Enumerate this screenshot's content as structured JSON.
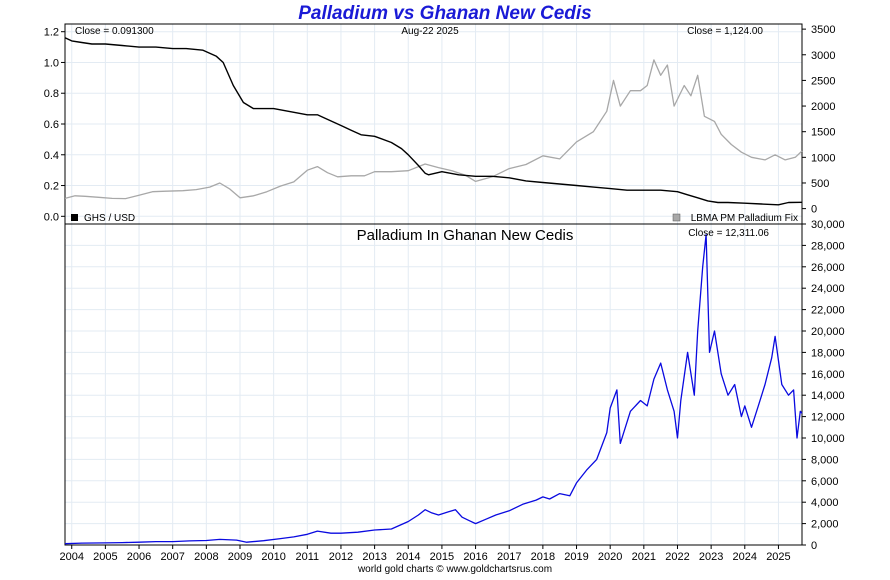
{
  "title": "Palladium vs Ghanan New Cedis",
  "footer": "world gold charts © www.goldchartsrus.com",
  "colors": {
    "title": "#1a1ad6",
    "ghs_series": "#000000",
    "palladium_series": "#a8a8a8",
    "ghs_price_series": "#0a0ae0",
    "grid": "#e3ebf3"
  },
  "top_panel": {
    "date_label": "Aug-22  2025",
    "left_close": "Close = 0.091300",
    "right_close": "Close = 1,124.00",
    "legend_left": "GHS / USD",
    "legend_right": "LBMA PM Palladium Fix"
  },
  "bottom_panel": {
    "title": "Palladium In Ghanan New Cedis",
    "close": "Close = 12,311.06"
  },
  "chart_data": [
    {
      "type": "line",
      "panel": "top",
      "grid": true,
      "x_range": [
        2003.8,
        2025.7
      ],
      "x_ticks": [
        "2004",
        "2005",
        "2006",
        "2007",
        "2008",
        "2009",
        "2010",
        "2011",
        "2012",
        "2013",
        "2014",
        "2015",
        "2016",
        "2017",
        "2018",
        "2019",
        "2020",
        "2021",
        "2022",
        "2023",
        "2024",
        "2025"
      ],
      "left_axis": {
        "range": [
          -0.05,
          1.25
        ],
        "ticks": [
          "0.0",
          "0.2",
          "0.4",
          "0.6",
          "0.8",
          "1.0",
          "1.2"
        ]
      },
      "right_axis": {
        "range": [
          -300,
          3600
        ],
        "ticks": [
          "0",
          "500",
          "1000",
          "1500",
          "2000",
          "2500",
          "3000",
          "3500"
        ]
      },
      "series": [
        {
          "name": "GHS / USD",
          "axis": "left",
          "x": [
            2003.8,
            2004.0,
            2004.3,
            2004.6,
            2005.0,
            2005.5,
            2006.0,
            2006.5,
            2007.0,
            2007.4,
            2007.9,
            2008.3,
            2008.5,
            2008.8,
            2009.1,
            2009.4,
            2009.7,
            2010.0,
            2010.5,
            2011.0,
            2011.3,
            2011.6,
            2012.0,
            2012.3,
            2012.6,
            2013.0,
            2013.5,
            2013.8,
            2014.0,
            2014.3,
            2014.5,
            2014.6,
            2015.0,
            2015.5,
            2016.0,
            2016.5,
            2017.0,
            2017.5,
            2018.0,
            2018.5,
            2019.0,
            2019.5,
            2020.0,
            2020.5,
            2021.0,
            2021.5,
            2022.0,
            2022.3,
            2022.6,
            2022.9,
            2023.2,
            2023.5,
            2024.0,
            2024.5,
            2025.0,
            2025.3,
            2025.7
          ],
          "y": [
            1.16,
            1.14,
            1.13,
            1.12,
            1.12,
            1.11,
            1.1,
            1.1,
            1.09,
            1.09,
            1.08,
            1.04,
            1.0,
            0.85,
            0.74,
            0.7,
            0.7,
            0.7,
            0.68,
            0.66,
            0.66,
            0.63,
            0.59,
            0.56,
            0.53,
            0.52,
            0.48,
            0.44,
            0.4,
            0.33,
            0.28,
            0.27,
            0.29,
            0.27,
            0.26,
            0.26,
            0.25,
            0.23,
            0.22,
            0.21,
            0.2,
            0.19,
            0.18,
            0.17,
            0.17,
            0.17,
            0.16,
            0.14,
            0.12,
            0.1,
            0.09,
            0.09,
            0.085,
            0.08,
            0.075,
            0.09,
            0.0913
          ]
        },
        {
          "name": "LBMA PM Palladium Fix",
          "axis": "right",
          "x": [
            2003.8,
            2004.1,
            2004.4,
            2004.8,
            2005.2,
            2005.6,
            2006.0,
            2006.4,
            2006.8,
            2007.3,
            2007.7,
            2008.1,
            2008.4,
            2008.7,
            2009.0,
            2009.4,
            2009.8,
            2010.2,
            2010.6,
            2011.0,
            2011.3,
            2011.6,
            2011.9,
            2012.3,
            2012.7,
            2013.0,
            2013.5,
            2014.0,
            2014.5,
            2014.9,
            2015.3,
            2015.7,
            2016.0,
            2016.5,
            2017.0,
            2017.5,
            2018.0,
            2018.5,
            2019.0,
            2019.5,
            2019.9,
            2020.1,
            2020.3,
            2020.6,
            2020.9,
            2021.1,
            2021.3,
            2021.5,
            2021.7,
            2021.9,
            2022.2,
            2022.4,
            2022.6,
            2022.8,
            2023.1,
            2023.3,
            2023.6,
            2023.9,
            2024.2,
            2024.6,
            2024.9,
            2025.2,
            2025.5,
            2025.7
          ],
          "y": [
            200,
            250,
            240,
            220,
            200,
            195,
            260,
            330,
            340,
            350,
            370,
            420,
            500,
            380,
            210,
            250,
            330,
            440,
            520,
            750,
            820,
            700,
            620,
            640,
            640,
            720,
            720,
            740,
            870,
            800,
            740,
            650,
            530,
            620,
            780,
            860,
            1030,
            970,
            1300,
            1500,
            1900,
            2500,
            2000,
            2300,
            2300,
            2400,
            2900,
            2600,
            2800,
            2000,
            2400,
            2200,
            2600,
            1800,
            1700,
            1450,
            1250,
            1100,
            1000,
            950,
            1050,
            950,
            1000,
            1124
          ]
        }
      ]
    },
    {
      "type": "line",
      "panel": "bottom",
      "title": "Palladium In Ghanan New Cedis",
      "grid": true,
      "x_range": [
        2003.8,
        2025.7
      ],
      "x_ticks": [
        "2004",
        "2005",
        "2006",
        "2007",
        "2008",
        "2009",
        "2010",
        "2011",
        "2012",
        "2013",
        "2014",
        "2015",
        "2016",
        "2017",
        "2018",
        "2019",
        "2020",
        "2021",
        "2022",
        "2023",
        "2024",
        "2025"
      ],
      "y_axis": {
        "range": [
          0,
          30000
        ],
        "ticks": [
          "0",
          "2,000",
          "4,000",
          "6,000",
          "8,000",
          "10,000",
          "12,000",
          "14,000",
          "16,000",
          "18,000",
          "20,000",
          "22,000",
          "24,000",
          "26,000",
          "28,000",
          "30,000"
        ]
      },
      "series": [
        {
          "name": "Palladium In Ghanan New Cedis",
          "x": [
            2003.8,
            2004.3,
            2005.0,
            2005.5,
            2006.0,
            2006.5,
            2007.0,
            2007.5,
            2008.0,
            2008.4,
            2008.9,
            2009.2,
            2009.7,
            2010.2,
            2010.6,
            2011.0,
            2011.3,
            2011.7,
            2012.0,
            2012.5,
            2013.0,
            2013.5,
            2014.0,
            2014.3,
            2014.5,
            2014.7,
            2014.9,
            2015.2,
            2015.4,
            2015.6,
            2015.8,
            2016.0,
            2016.3,
            2016.6,
            2017.0,
            2017.4,
            2017.8,
            2018.0,
            2018.2,
            2018.5,
            2018.8,
            2019.0,
            2019.3,
            2019.6,
            2019.9,
            2020.0,
            2020.2,
            2020.3,
            2020.6,
            2020.9,
            2021.1,
            2021.3,
            2021.5,
            2021.7,
            2021.9,
            2022.0,
            2022.1,
            2022.3,
            2022.5,
            2022.6,
            2022.75,
            2022.85,
            2022.95,
            2023.1,
            2023.3,
            2023.5,
            2023.7,
            2023.9,
            2024.0,
            2024.2,
            2024.4,
            2024.6,
            2024.8,
            2024.9,
            2025.1,
            2025.3,
            2025.45,
            2025.55,
            2025.65,
            2025.7
          ],
          "y": [
            120,
            180,
            200,
            220,
            260,
            320,
            320,
            380,
            420,
            520,
            460,
            260,
            400,
            600,
            760,
            1000,
            1300,
            1100,
            1100,
            1200,
            1400,
            1500,
            2200,
            2800,
            3300,
            3000,
            2800,
            3100,
            3300,
            2600,
            2300,
            2000,
            2400,
            2800,
            3200,
            3800,
            4200,
            4500,
            4300,
            4800,
            4600,
            5800,
            7000,
            8000,
            10500,
            12800,
            14500,
            9500,
            12500,
            13500,
            13000,
            15500,
            17000,
            14500,
            12500,
            10000,
            13500,
            18000,
            14000,
            20000,
            26000,
            29000,
            18000,
            20000,
            16000,
            14000,
            15000,
            12000,
            13000,
            11000,
            13000,
            15000,
            17500,
            19500,
            15000,
            14000,
            14500,
            10000,
            12500,
            12311
          ]
        }
      ]
    }
  ]
}
